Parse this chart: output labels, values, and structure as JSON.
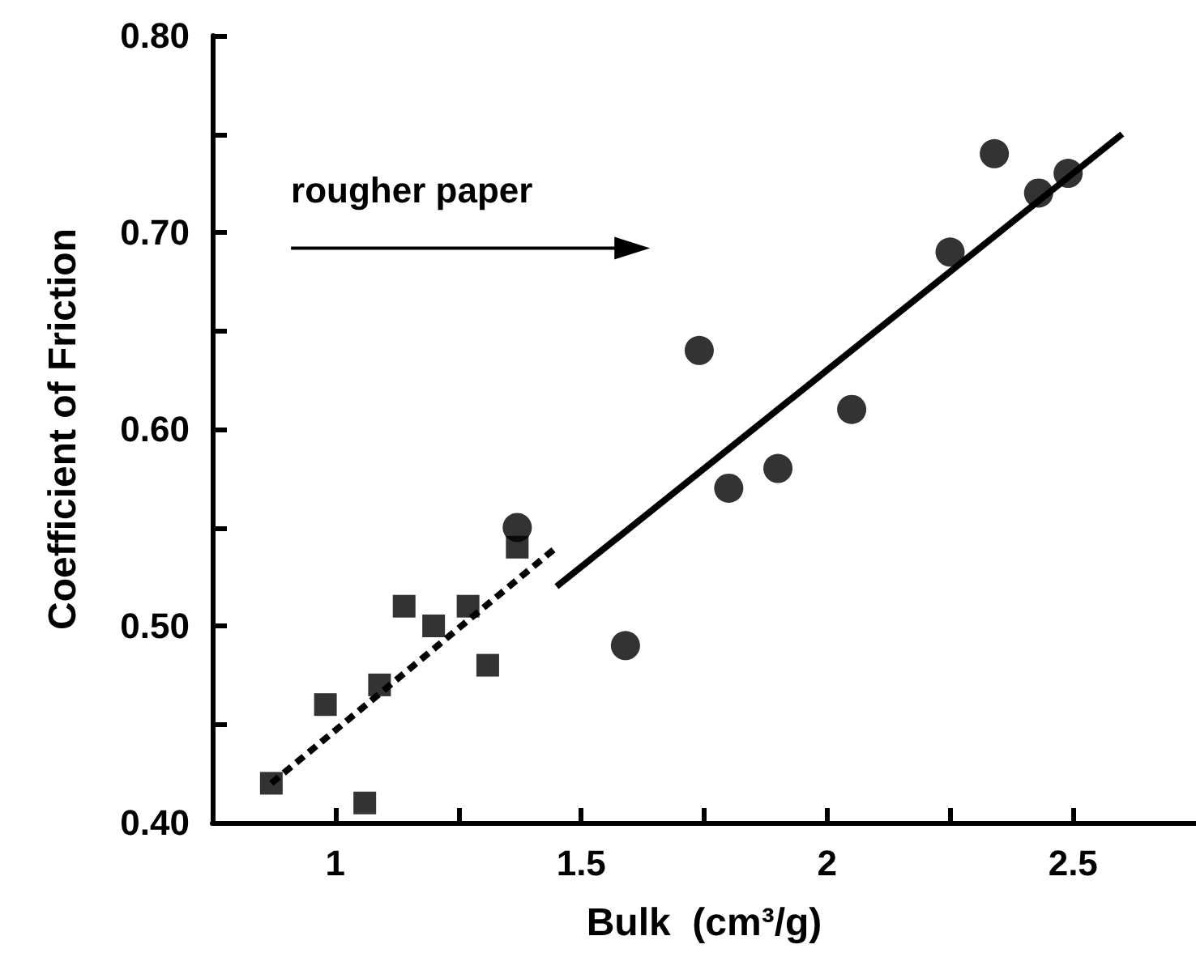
{
  "chart_data": {
    "type": "scatter",
    "xlabel": "Bulk  (cm³/g)",
    "ylabel": "Coefficient of Friction",
    "annotations": [
      "rougher paper"
    ],
    "xlim": [
      0.75,
      2.75
    ],
    "xticks": [
      1,
      {
        "value": 1.25,
        "label": null
      },
      1.5,
      {
        "value": 1.75,
        "label": null
      },
      2,
      {
        "value": 2.25,
        "label": null
      },
      2.5
    ],
    "ylim": [
      0.4,
      0.8
    ],
    "yticks": [
      {
        "value": 0.4,
        "label": "0.40"
      },
      {
        "value": 0.45,
        "label": null
      },
      {
        "value": 0.5,
        "label": "0.50"
      },
      {
        "value": 0.55,
        "label": null
      },
      {
        "value": 0.6,
        "label": "0.60"
      },
      {
        "value": 0.65,
        "label": null
      },
      {
        "value": 0.7,
        "label": "0.70"
      },
      {
        "value": 0.75,
        "label": null
      },
      {
        "value": 0.8,
        "label": "0.80"
      }
    ],
    "grid": false,
    "series": [
      {
        "marker": "square",
        "color": "#000000",
        "x": [
          0.87,
          0.98,
          1.06,
          1.09,
          1.14,
          1.2,
          1.27,
          1.31,
          1.37
        ],
        "values": [
          0.42,
          0.46,
          0.41,
          0.47,
          0.51,
          0.5,
          0.51,
          0.48,
          0.54
        ]
      },
      {
        "marker": "circle",
        "color": "#000000",
        "x": [
          1.37,
          1.59,
          1.74,
          1.8,
          1.9,
          2.05,
          2.25,
          2.34,
          2.43,
          2.49
        ],
        "values": [
          0.55,
          0.49,
          0.64,
          0.57,
          0.58,
          0.61,
          0.69,
          0.74,
          0.72,
          0.73
        ]
      },
      {
        "type": "line",
        "marker": "none",
        "line_style": "dashed",
        "color": "#000000",
        "x": [
          0.87,
          1.45
        ],
        "values": [
          0.42,
          0.54
        ]
      },
      {
        "type": "line",
        "marker": "none",
        "line_style": "solid",
        "color": "#000000",
        "x": [
          1.45,
          2.6
        ],
        "values": [
          0.52,
          0.75
        ]
      }
    ]
  }
}
